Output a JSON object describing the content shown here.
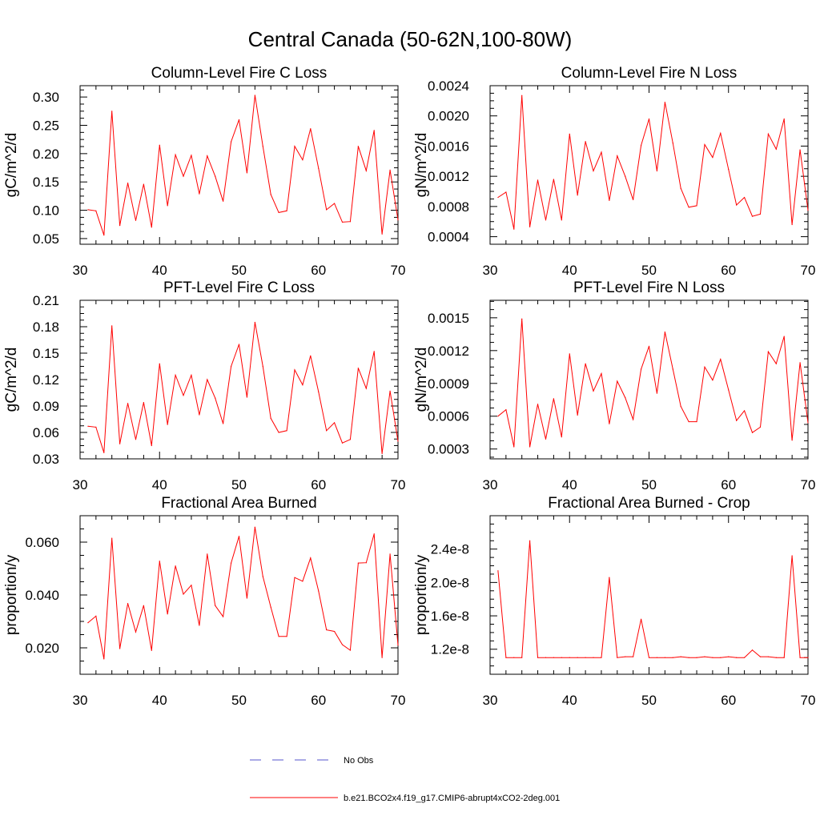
{
  "figure": {
    "title": "Central Canada (50-62N,100-80W)"
  },
  "legend": {
    "entries": [
      {
        "label": "No Obs",
        "color": "#5555cc",
        "style": "dashed"
      },
      {
        "label": "b.e21.BCO2x4.f19_g17.CMIP6-abrupt4xCO2-2deg.001",
        "color": "#ff0000",
        "style": "solid"
      }
    ]
  },
  "chart_data": [
    {
      "type": "line",
      "title": "Column-Level Fire C Loss",
      "ylabel": "gC/m^2/d",
      "xlabel": "",
      "xlim": [
        30,
        70
      ],
      "ylim": [
        0.04,
        0.32
      ],
      "xticks": [
        30,
        40,
        50,
        60,
        70
      ],
      "xtick_labels": [
        "30",
        "40",
        "50",
        "60",
        "70"
      ],
      "yticks": [
        0.05,
        0.1,
        0.15,
        0.2,
        0.25,
        0.3
      ],
      "ytick_labels": [
        "0.05",
        "0.10",
        "0.15",
        "0.20",
        "0.25",
        "0.30"
      ],
      "x": [
        31,
        32,
        33,
        34,
        35,
        36,
        37,
        38,
        39,
        40,
        41,
        42,
        43,
        44,
        45,
        46,
        47,
        48,
        49,
        50,
        51,
        52,
        53,
        54,
        55,
        56,
        57,
        58,
        59,
        60,
        61,
        62,
        63,
        64,
        65,
        66,
        67,
        68,
        69,
        70
      ],
      "series": [
        {
          "name": "b.e21.BCO2x4.f19_g17.CMIP6-abrupt4xCO2-2deg.001",
          "color": "#ff0000",
          "values": [
            0.101,
            0.099,
            0.056,
            0.275,
            0.073,
            0.148,
            0.082,
            0.146,
            0.07,
            0.215,
            0.108,
            0.198,
            0.16,
            0.197,
            0.129,
            0.196,
            0.16,
            0.116,
            0.221,
            0.26,
            0.166,
            0.303,
            0.213,
            0.128,
            0.096,
            0.099,
            0.213,
            0.189,
            0.244,
            0.174,
            0.101,
            0.112,
            0.079,
            0.08,
            0.213,
            0.17,
            0.241,
            0.058,
            0.171,
            0.083
          ]
        }
      ]
    },
    {
      "type": "line",
      "title": "Column-Level Fire N Loss",
      "ylabel": "gN/m^2/d",
      "xlabel": "",
      "xlim": [
        30,
        70
      ],
      "ylim": [
        0.0003,
        0.0024
      ],
      "xticks": [
        30,
        40,
        50,
        60,
        70
      ],
      "xtick_labels": [
        "30",
        "40",
        "50",
        "60",
        "70"
      ],
      "yticks": [
        0.0004,
        0.0008,
        0.0012,
        0.0016,
        0.002,
        0.0024
      ],
      "ytick_labels": [
        "0.0004",
        "0.0008",
        "0.0012",
        "0.0016",
        "0.0020",
        "0.0024"
      ],
      "x": [
        31,
        32,
        33,
        34,
        35,
        36,
        37,
        38,
        39,
        40,
        41,
        42,
        43,
        44,
        45,
        46,
        47,
        48,
        49,
        50,
        51,
        52,
        53,
        54,
        55,
        56,
        57,
        58,
        59,
        60,
        61,
        62,
        63,
        64,
        65,
        66,
        67,
        68,
        69,
        70
      ],
      "series": [
        {
          "name": "b.e21.BCO2x4.f19_g17.CMIP6-abrupt4xCO2-2deg.001",
          "color": "#ff0000",
          "values": [
            0.00092,
            0.00099,
            0.0005,
            0.00227,
            0.00053,
            0.00115,
            0.00062,
            0.00116,
            0.00062,
            0.00176,
            0.00095,
            0.00166,
            0.00127,
            0.00152,
            0.00088,
            0.00147,
            0.0012,
            0.00089,
            0.00161,
            0.00196,
            0.00127,
            0.00218,
            0.00164,
            0.00104,
            0.00079,
            0.00081,
            0.00162,
            0.00145,
            0.00177,
            0.00129,
            0.00082,
            0.00092,
            0.00067,
            0.0007,
            0.00176,
            0.00156,
            0.00196,
            0.00056,
            0.00155,
            0.00075
          ]
        }
      ]
    },
    {
      "type": "line",
      "title": "PFT-Level Fire C Loss",
      "ylabel": "gC/m^2/d",
      "xlabel": "",
      "xlim": [
        30,
        70
      ],
      "ylim": [
        0.03,
        0.21
      ],
      "xticks": [
        30,
        40,
        50,
        60,
        70
      ],
      "xtick_labels": [
        "30",
        "40",
        "50",
        "60",
        "70"
      ],
      "yticks": [
        0.03,
        0.06,
        0.09,
        0.12,
        0.15,
        0.18,
        0.21
      ],
      "ytick_labels": [
        "0.03",
        "0.06",
        "0.09",
        "0.12",
        "0.15",
        "0.18",
        "0.21"
      ],
      "x": [
        31,
        32,
        33,
        34,
        35,
        36,
        37,
        38,
        39,
        40,
        41,
        42,
        43,
        44,
        45,
        46,
        47,
        48,
        49,
        50,
        51,
        52,
        53,
        54,
        55,
        56,
        57,
        58,
        59,
        60,
        61,
        62,
        63,
        64,
        65,
        66,
        67,
        68,
        69,
        70
      ],
      "series": [
        {
          "name": "b.e21.BCO2x4.f19_g17.CMIP6-abrupt4xCO2-2deg.001",
          "color": "#ff0000",
          "values": [
            0.067,
            0.066,
            0.037,
            0.181,
            0.047,
            0.093,
            0.052,
            0.094,
            0.045,
            0.138,
            0.069,
            0.125,
            0.102,
            0.125,
            0.08,
            0.12,
            0.099,
            0.07,
            0.135,
            0.16,
            0.1,
            0.185,
            0.135,
            0.076,
            0.06,
            0.062,
            0.131,
            0.114,
            0.147,
            0.106,
            0.062,
            0.071,
            0.048,
            0.052,
            0.133,
            0.11,
            0.152,
            0.036,
            0.107,
            0.05
          ]
        }
      ]
    },
    {
      "type": "line",
      "title": "PFT-Level Fire N Loss",
      "ylabel": "gN/m^2/d",
      "xlabel": "",
      "xlim": [
        30,
        70
      ],
      "ylim": [
        0.00021,
        0.00166
      ],
      "xticks": [
        30,
        40,
        50,
        60,
        70
      ],
      "xtick_labels": [
        "30",
        "40",
        "50",
        "60",
        "70"
      ],
      "yticks": [
        0.0003,
        0.0006,
        0.0009,
        0.0012,
        0.0015
      ],
      "ytick_labels": [
        "0.0003",
        "0.0006",
        "0.0009",
        "0.0012",
        "0.0015"
      ],
      "x": [
        31,
        32,
        33,
        34,
        35,
        36,
        37,
        38,
        39,
        40,
        41,
        42,
        43,
        44,
        45,
        46,
        47,
        48,
        49,
        50,
        51,
        52,
        53,
        54,
        55,
        56,
        57,
        58,
        59,
        60,
        61,
        62,
        63,
        64,
        65,
        66,
        67,
        68,
        69,
        70
      ],
      "series": [
        {
          "name": "b.e21.BCO2x4.f19_g17.CMIP6-abrupt4xCO2-2deg.001",
          "color": "#ff0000",
          "values": [
            0.0006,
            0.00066,
            0.00032,
            0.00149,
            0.00032,
            0.00071,
            0.00039,
            0.00076,
            0.00041,
            0.00117,
            0.00061,
            0.00108,
            0.00083,
            0.00099,
            0.00053,
            0.00092,
            0.00077,
            0.00057,
            0.00103,
            0.00124,
            0.00081,
            0.00137,
            0.00103,
            0.00069,
            0.00055,
            0.00055,
            0.00105,
            0.00093,
            0.00112,
            0.00084,
            0.00056,
            0.00065,
            0.00045,
            0.0005,
            0.00119,
            0.00108,
            0.00133,
            0.00038,
            0.00109,
            0.00054
          ]
        }
      ]
    },
    {
      "type": "line",
      "title": "Fractional Area Burned",
      "ylabel": "proportion/y",
      "xlabel": "",
      "xlim": [
        30,
        70
      ],
      "ylim": [
        0.01,
        0.07
      ],
      "xticks": [
        30,
        40,
        50,
        60,
        70
      ],
      "xtick_labels": [
        "30",
        "40",
        "50",
        "60",
        "70"
      ],
      "yticks": [
        0.02,
        0.04,
        0.06
      ],
      "ytick_labels": [
        "0.020",
        "0.040",
        "0.060"
      ],
      "x": [
        31,
        32,
        33,
        34,
        35,
        36,
        37,
        38,
        39,
        40,
        41,
        42,
        43,
        44,
        45,
        46,
        47,
        48,
        49,
        50,
        51,
        52,
        53,
        54,
        55,
        56,
        57,
        58,
        59,
        60,
        61,
        62,
        63,
        64,
        65,
        66,
        67,
        68,
        69,
        70
      ],
      "series": [
        {
          "name": "b.e21.BCO2x4.f19_g17.CMIP6-abrupt4xCO2-2deg.001",
          "color": "#ff0000",
          "values": [
            0.0295,
            0.032,
            0.0158,
            0.0615,
            0.0197,
            0.0368,
            0.026,
            0.036,
            0.019,
            0.0528,
            0.0328,
            0.051,
            0.0403,
            0.0437,
            0.0285,
            0.0555,
            0.036,
            0.0318,
            0.0521,
            0.0622,
            0.0388,
            0.0657,
            0.047,
            0.0354,
            0.0243,
            0.0243,
            0.0466,
            0.0452,
            0.054,
            0.0415,
            0.0268,
            0.0262,
            0.0212,
            0.0191,
            0.0521,
            0.0522,
            0.0631,
            0.0163,
            0.0555,
            0.021
          ]
        }
      ]
    },
    {
      "type": "line",
      "title": "Fractional Area Burned - Crop",
      "ylabel": "proportion/y",
      "xlabel": "",
      "xlim": [
        30,
        70
      ],
      "ylim": [
        9e-09,
        2.8e-08
      ],
      "xticks": [
        30,
        40,
        50,
        60,
        70
      ],
      "xtick_labels": [
        "30",
        "40",
        "50",
        "60",
        "70"
      ],
      "yticks": [
        1.2e-08,
        1.6e-08,
        2e-08,
        2.4e-08
      ],
      "ytick_labels": [
        "1.2e-8",
        "1.6e-8",
        "2.0e-8",
        "2.4e-8"
      ],
      "x": [
        31,
        32,
        33,
        34,
        35,
        36,
        37,
        38,
        39,
        40,
        41,
        42,
        43,
        44,
        45,
        46,
        47,
        48,
        49,
        50,
        51,
        52,
        53,
        54,
        55,
        56,
        57,
        58,
        59,
        60,
        61,
        62,
        63,
        64,
        65,
        66,
        67,
        68,
        69,
        70
      ],
      "series": [
        {
          "name": "b.e21.BCO2x4.f19_g17.CMIP6-abrupt4xCO2-2deg.001",
          "color": "#ff0000",
          "values": [
            2.14e-08,
            1.1e-08,
            1.1e-08,
            1.1e-08,
            2.5e-08,
            1.1e-08,
            1.1e-08,
            1.1e-08,
            1.1e-08,
            1.1e-08,
            1.1e-08,
            1.1e-08,
            1.1e-08,
            1.1e-08,
            2.06e-08,
            1.1e-08,
            1.11e-08,
            1.11e-08,
            1.56e-08,
            1.1e-08,
            1.1e-08,
            1.1e-08,
            1.1e-08,
            1.11e-08,
            1.1e-08,
            1.1e-08,
            1.11e-08,
            1.1e-08,
            1.1e-08,
            1.11e-08,
            1.1e-08,
            1.1e-08,
            1.19e-08,
            1.11e-08,
            1.11e-08,
            1.1e-08,
            1.1e-08,
            2.32e-08,
            1.1e-08,
            1.1e-08
          ]
        }
      ]
    }
  ]
}
